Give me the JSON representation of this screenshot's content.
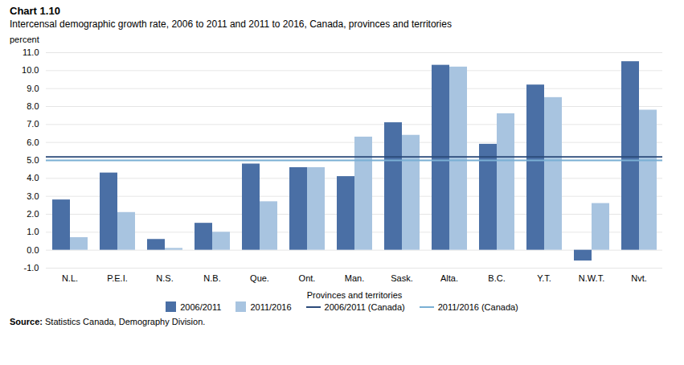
{
  "chart_data": {
    "type": "bar",
    "title": "Chart 1.10",
    "subtitle": "Intercensal demographic growth rate, 2006 to 2011 and 2011 to 2016, Canada, provinces and territories",
    "xlabel": "Provinces and territories",
    "ylabel": "percent",
    "categories": [
      "N.L.",
      "P.E.I.",
      "N.S.",
      "N.B.",
      "Que.",
      "Ont.",
      "Man.",
      "Sask.",
      "Alta.",
      "B.C.",
      "Y.T.",
      "N.W.T.",
      "Nvt."
    ],
    "series": [
      {
        "name": "2006/2011",
        "type": "bar",
        "color": "#4a6fa5",
        "values": [
          2.8,
          4.3,
          0.6,
          1.5,
          4.8,
          4.6,
          4.1,
          7.1,
          10.3,
          5.9,
          9.2,
          -0.6,
          10.5
        ]
      },
      {
        "name": "2011/2016",
        "type": "bar",
        "color": "#a8c4e0",
        "values": [
          0.7,
          2.1,
          0.1,
          1.0,
          2.7,
          4.6,
          6.3,
          6.4,
          10.2,
          7.6,
          8.5,
          2.6,
          7.8
        ]
      },
      {
        "name": "2006/2011 (Canada)",
        "type": "hline",
        "color": "#2b4a7a",
        "value": 5.2
      },
      {
        "name": "2011/2016 (Canada)",
        "type": "hline",
        "color": "#7ab0d4",
        "value": 5.0
      }
    ],
    "ylim": [
      -1.0,
      11.0
    ],
    "yticks": [
      {
        "value": -1.0,
        "label": "-1.0"
      },
      {
        "value": 0.0,
        "label": "0.0"
      },
      {
        "value": 1.0,
        "label": "1.0"
      },
      {
        "value": 2.0,
        "label": "2.0"
      },
      {
        "value": 3.0,
        "label": "3.0"
      },
      {
        "value": 4.0,
        "label": "4.0"
      },
      {
        "value": 5.0,
        "label": "5.0"
      },
      {
        "value": 6.0,
        "label": "6.0"
      },
      {
        "value": 7.0,
        "label": "7.0"
      },
      {
        "value": 8.0,
        "label": "8.0"
      },
      {
        "value": 9.0,
        "label": "9.0"
      },
      {
        "value": 10.0,
        "label": "10.0"
      },
      {
        "value": 11.0,
        "label": "11.0"
      }
    ],
    "grid": true,
    "legend": "bottom",
    "source": "Source: Statistics Canada, Demography Division."
  }
}
